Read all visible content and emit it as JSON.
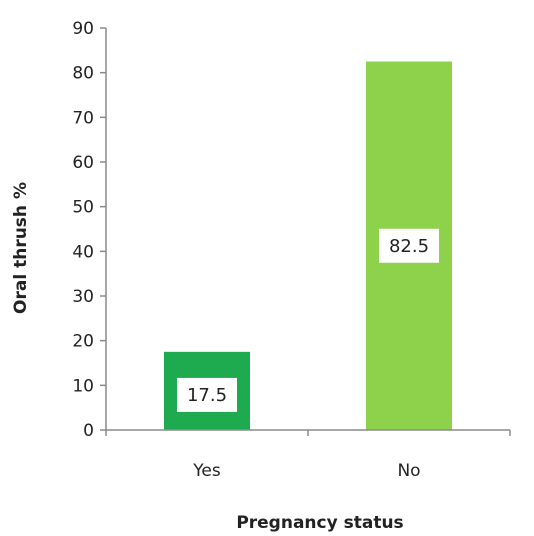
{
  "chart_data": {
    "type": "bar",
    "categories": [
      "Yes",
      "No"
    ],
    "values": [
      17.5,
      82.5
    ],
    "data_labels": [
      "17.5",
      "82.5"
    ],
    "bar_colors": [
      "#1eaa4f",
      "#8ed14b"
    ],
    "title": "",
    "xlabel": "Pregnancy status",
    "ylabel": "Oral thrush %",
    "ylim": [
      0,
      90
    ],
    "yticks": [
      0,
      10,
      20,
      30,
      40,
      50,
      60,
      70,
      80,
      90
    ],
    "grid": false,
    "legend": "none"
  }
}
